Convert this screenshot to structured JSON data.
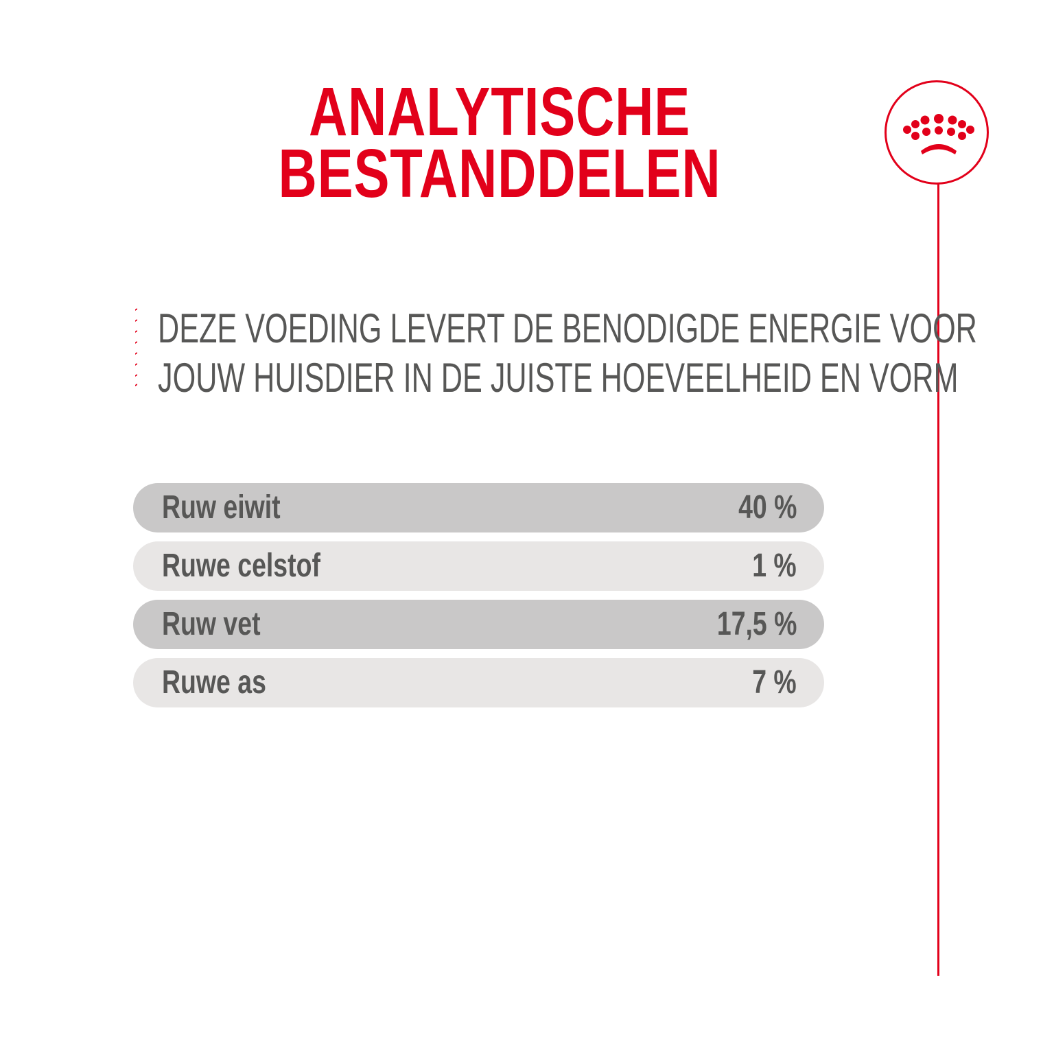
{
  "title": {
    "line1": "ANALYTISCHE",
    "line2": "BESTANDDELEN"
  },
  "subtitle": {
    "line1": "DEZE VOEDING LEVERT DE BENODIGDE ENERGIE VOOR",
    "line2": "JOUW HUISDIER IN DE JUISTE HOEVEELHEID EN VORM"
  },
  "logo": {
    "icon": "crown-icon",
    "color": "#e2001a"
  },
  "colors": {
    "accent": "#e2001a",
    "text": "#575756",
    "row_dark": "#c9c8c8",
    "row_light": "#e8e6e5"
  },
  "components": [
    {
      "label": "Ruw eiwit",
      "value": "40 %"
    },
    {
      "label": "Ruwe celstof",
      "value": "1 %"
    },
    {
      "label": "Ruw vet",
      "value": "17,5 %"
    },
    {
      "label": "Ruwe as",
      "value": "7 %"
    }
  ]
}
